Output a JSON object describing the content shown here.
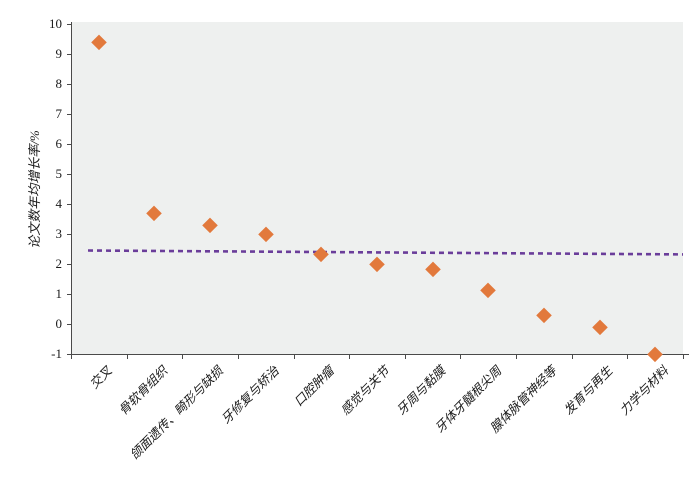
{
  "chart_data": {
    "type": "scatter",
    "title": "",
    "xlabel": "",
    "ylabel": "论文数年均增长率/%",
    "ylim": [
      -1,
      10
    ],
    "ytick_interval": 1,
    "grid": false,
    "legend_position": "none",
    "categories": [
      "交叉",
      "骨软骨组织",
      "颌面遗传、畸形与缺损",
      "牙修复与矫治",
      "口腔肿瘤",
      "感觉与关节",
      "牙周与黏膜",
      "牙体牙髓根尖周",
      "腺体脉管神经等",
      "发育与再生",
      "力学与材料"
    ],
    "series": [
      {
        "name": "论文数年均增长率",
        "marker": "diamond",
        "color": "#e2793c",
        "values": [
          9.4,
          3.7,
          3.3,
          3.0,
          2.35,
          2.0,
          1.85,
          1.15,
          0.3,
          -0.1,
          -1.0
        ]
      }
    ],
    "trend_line": {
      "style": "dashed",
      "color": "#6a3d9a",
      "start_value": 2.45,
      "end_value": 2.32
    },
    "colors": {
      "plot_background": "#eef0ef",
      "axis": "#4a4a4a",
      "tick_label": "#1a1a1a"
    }
  }
}
